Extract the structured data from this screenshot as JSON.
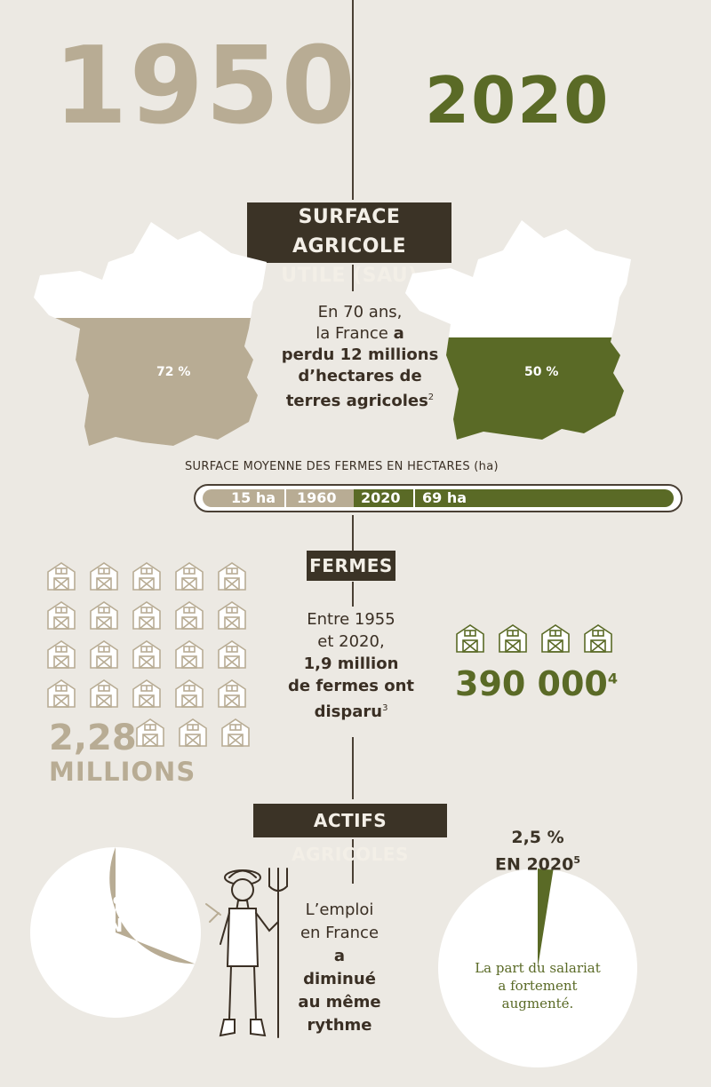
{
  "years": {
    "left": "1950",
    "right": "2020"
  },
  "sau": {
    "tag_line1": "SURFACE AGRICOLE",
    "tag_line2": "UTILE (SAU)",
    "pct_1950": "72 %",
    "pct_2020": "50 %",
    "text_l1": "En 70 ans,",
    "text_l2a": "la France ",
    "text_l2b": "a",
    "text_l3": "perdu 12 millions",
    "text_l4": "d’hectares de",
    "text_l5": "terres agricoles",
    "text_sup": "2"
  },
  "farm_size": {
    "caption": "SURFACE MOYENNE DES FERMES EN HECTARES (ha)",
    "left_value": "15 ha",
    "left_year": "1960",
    "right_year": "2020",
    "right_value": "69 ha",
    "value_1960": 15,
    "value_2020": 69
  },
  "fermes": {
    "tag": "FERMES",
    "count_1950_num": "2,28",
    "count_1950_unit": "MILLIONS",
    "count_2020": "390 000",
    "count_2020_sup": "4",
    "text_l1": "Entre 1955",
    "text_l2": "et 2020,",
    "text_l3": "1,9 million",
    "text_l4": "de fermes ont",
    "text_l5": "disparu",
    "text_sup": "3"
  },
  "actifs": {
    "tag": "ACTIFS AGRICOLES",
    "pct_1950_l1": "31%",
    "pct_1950_l2": "EN 1950",
    "pct_2020_l1": "2,5 %",
    "pct_2020_l2": "EN 2020",
    "pct_2020_sup": "5",
    "share_1950": 31,
    "share_2020": 2.5,
    "text_l1": "L’emploi",
    "text_l2": "en France",
    "text_l3": "a diminué",
    "text_l4": "au même",
    "text_l5": "rythme",
    "salariat_l1": "La part du salariat",
    "salariat_l2": "a fortement",
    "salariat_l3": "augmenté."
  },
  "colors": {
    "beige": "#b8ac94",
    "olive": "#5a6a26",
    "dark": "#3b3326",
    "bg": "#ece9e3"
  }
}
